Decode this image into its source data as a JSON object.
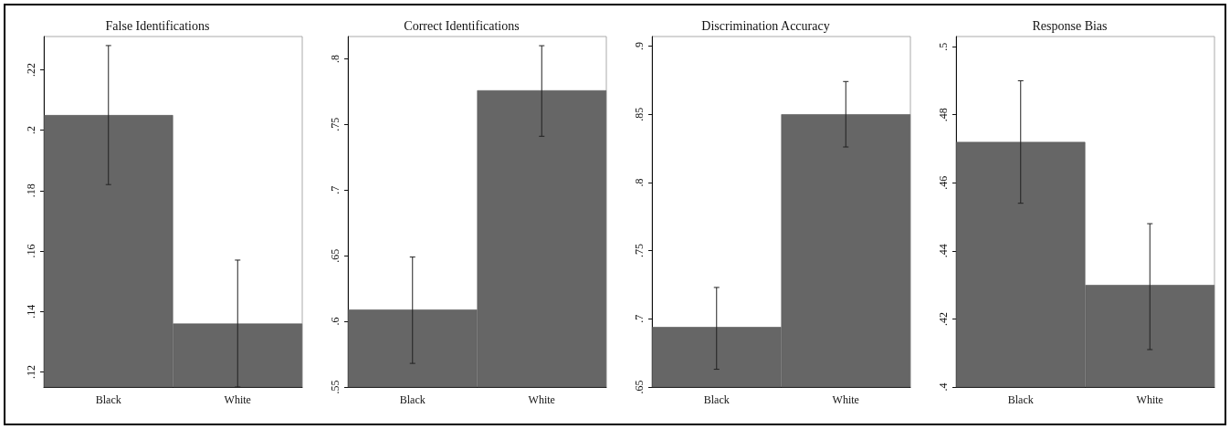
{
  "chart_data": [
    {
      "type": "bar",
      "title": "False Identifications",
      "categories": [
        "Black",
        "White"
      ],
      "values": [
        0.205,
        0.136
      ],
      "color": "#666666",
      "errors": [
        [
          0.182,
          0.228
        ],
        [
          0.115,
          0.157
        ]
      ],
      "ylim": [
        0.115,
        0.231
      ],
      "yticks": [
        {
          "value": 0.12,
          "label": ".12"
        },
        {
          "value": 0.14,
          "label": ".14"
        },
        {
          "value": 0.16,
          "label": ".16"
        },
        {
          "value": 0.18,
          "label": ".18"
        },
        {
          "value": 0.2,
          "label": ".2"
        },
        {
          "value": 0.22,
          "label": ".22"
        }
      ]
    },
    {
      "type": "bar",
      "title": "Correct Identifications",
      "categories": [
        "Black",
        "White"
      ],
      "values": [
        0.609,
        0.776
      ],
      "color": "#666666",
      "errors": [
        [
          0.568,
          0.649
        ],
        [
          0.741,
          0.81
        ]
      ],
      "ylim": [
        0.55,
        0.817
      ],
      "yticks": [
        {
          "value": 0.55,
          "label": ".55"
        },
        {
          "value": 0.6,
          "label": ".6"
        },
        {
          "value": 0.65,
          "label": ".65"
        },
        {
          "value": 0.7,
          "label": ".7"
        },
        {
          "value": 0.75,
          "label": ".75"
        },
        {
          "value": 0.8,
          "label": ".8"
        }
      ]
    },
    {
      "type": "bar",
      "title": "Discrimination Accuracy",
      "categories": [
        "Black",
        "White"
      ],
      "values": [
        0.694,
        0.85
      ],
      "color": "#666666",
      "errors": [
        [
          0.663,
          0.723
        ],
        [
          0.826,
          0.874
        ]
      ],
      "ylim": [
        0.65,
        0.907
      ],
      "yticks": [
        {
          "value": 0.65,
          "label": ".65"
        },
        {
          "value": 0.7,
          "label": ".7"
        },
        {
          "value": 0.75,
          "label": ".75"
        },
        {
          "value": 0.8,
          "label": ".8"
        },
        {
          "value": 0.85,
          "label": ".85"
        },
        {
          "value": 0.9,
          "label": ".9"
        }
      ]
    },
    {
      "type": "bar",
      "title": "Response Bias",
      "categories": [
        "Black",
        "White"
      ],
      "values": [
        0.472,
        0.43
      ],
      "color": "#666666",
      "errors": [
        [
          0.454,
          0.49
        ],
        [
          0.411,
          0.448
        ]
      ],
      "ylim": [
        0.4,
        0.503
      ],
      "yticks": [
        {
          "value": 0.4,
          "label": ".4"
        },
        {
          "value": 0.42,
          "label": ".42"
        },
        {
          "value": 0.44,
          "label": ".44"
        },
        {
          "value": 0.46,
          "label": ".46"
        },
        {
          "value": 0.48,
          "label": ".48"
        },
        {
          "value": 0.5,
          "label": ".5"
        }
      ]
    }
  ]
}
